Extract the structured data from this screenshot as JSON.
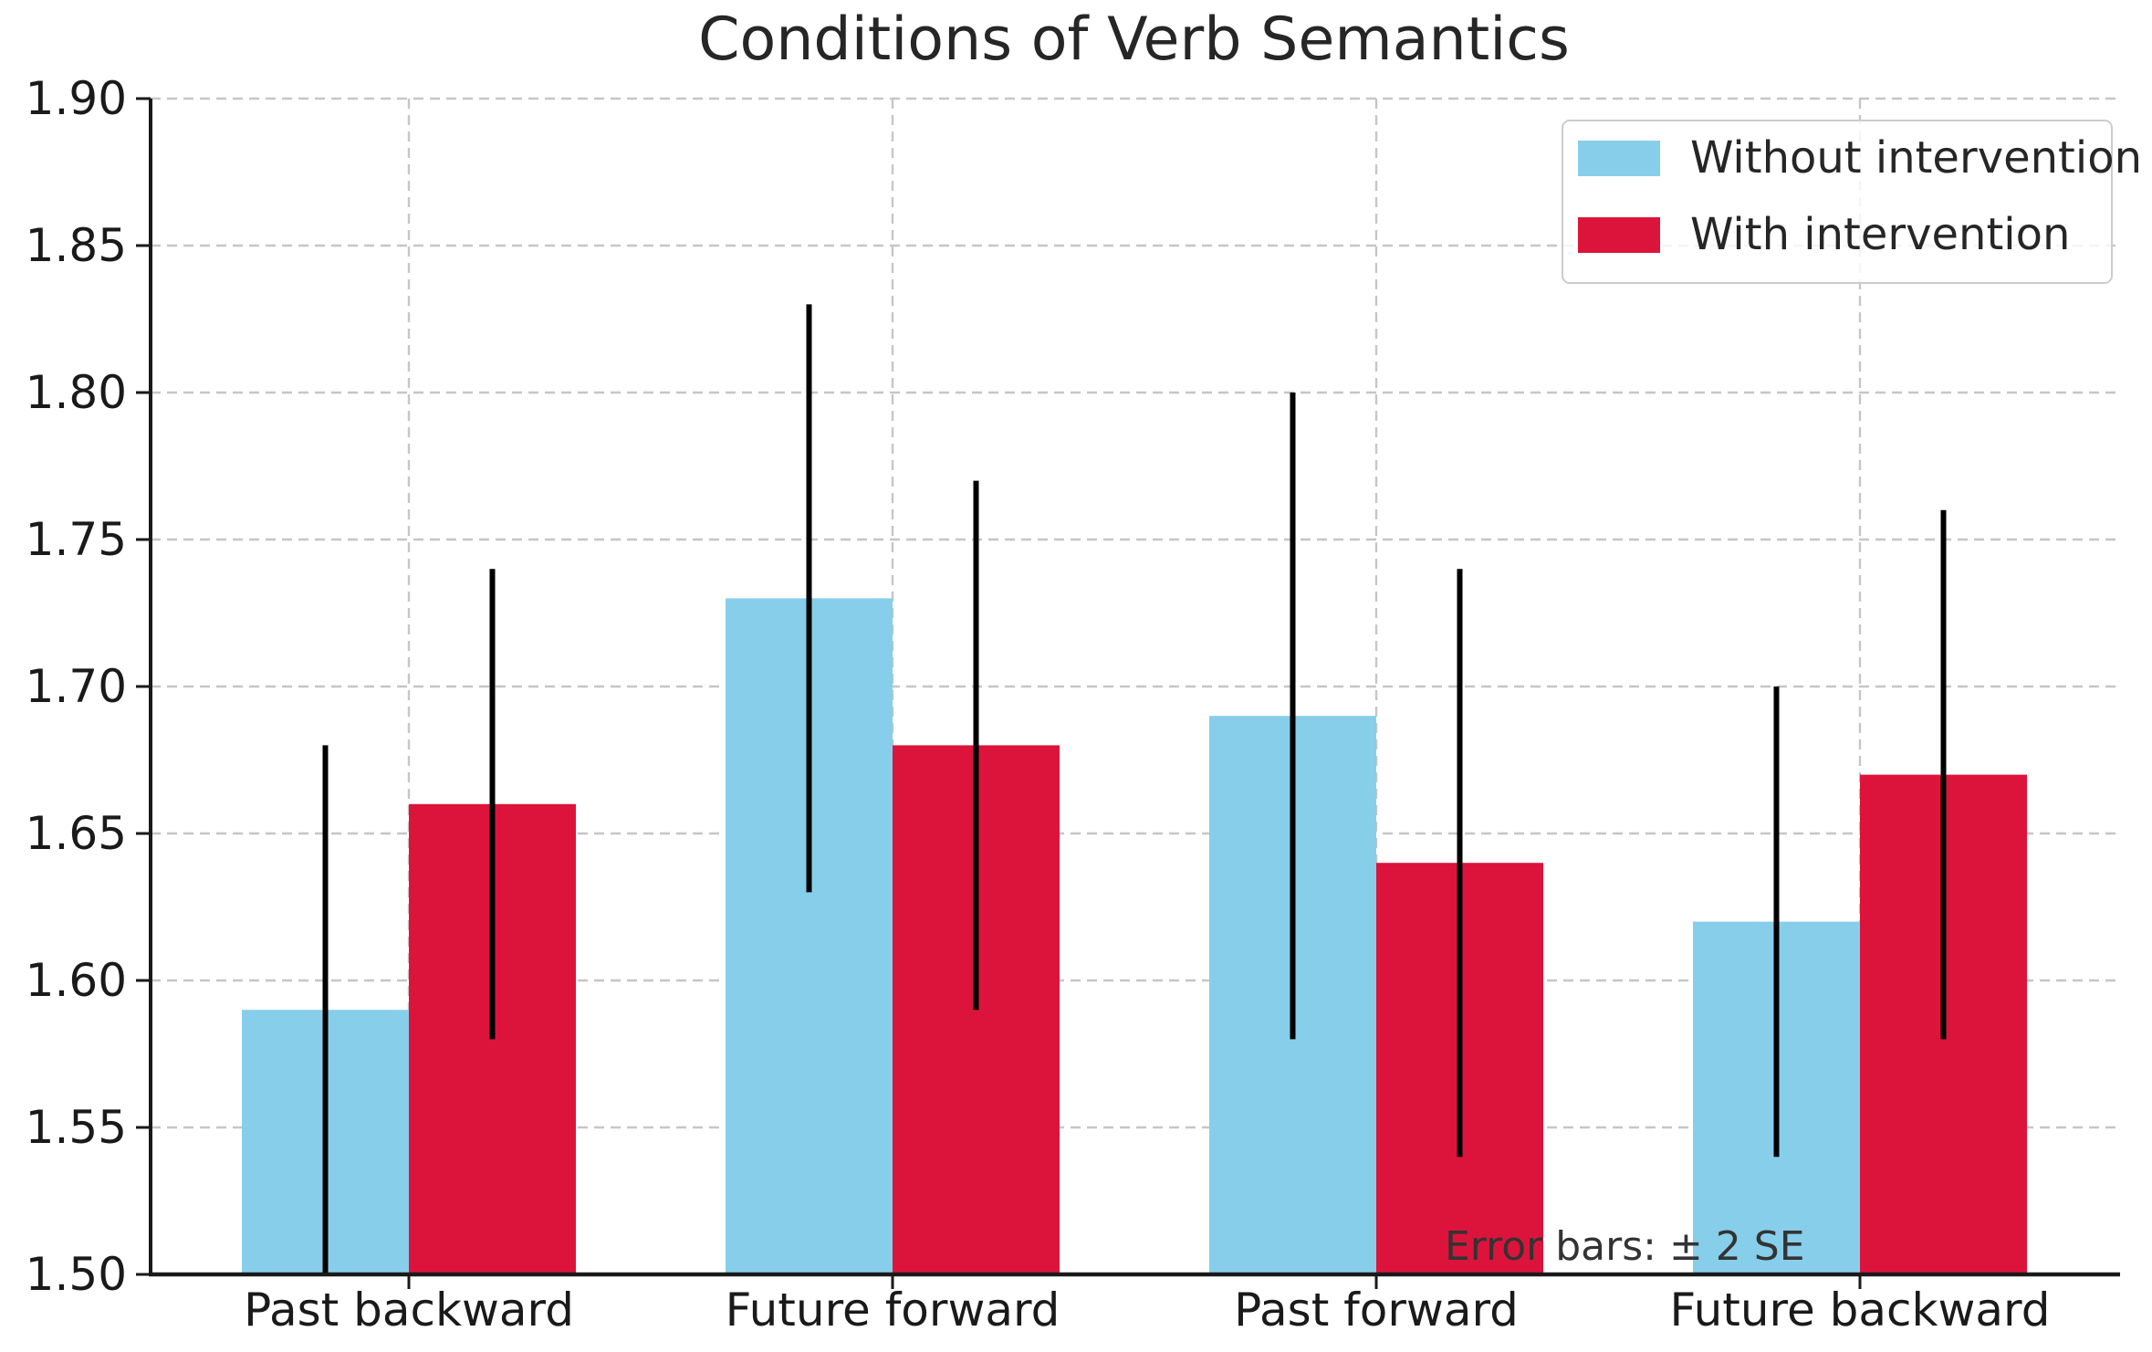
{
  "chart_data": {
    "type": "bar",
    "title": "Conditions of Verb Semantics",
    "categories": [
      "Past backward",
      "Future forward",
      "Past forward",
      "Future backward"
    ],
    "series": [
      {
        "name": "Without intervention",
        "color": "#87CEEB",
        "values": [
          1.59,
          1.73,
          1.69,
          1.62
        ],
        "error_2se": [
          0.09,
          0.1,
          0.11,
          0.08
        ]
      },
      {
        "name": "With intervention",
        "color": "#DC143C",
        "values": [
          1.66,
          1.68,
          1.64,
          1.67
        ],
        "error_2se": [
          0.08,
          0.09,
          0.1,
          0.09
        ]
      }
    ],
    "ylim": [
      1.5,
      1.9
    ],
    "yticks": [
      "1.50",
      "1.55",
      "1.60",
      "1.65",
      "1.70",
      "1.75",
      "1.80",
      "1.85",
      "1.90"
    ],
    "xlabel": "",
    "ylabel": "",
    "grid": {
      "horizontal": true,
      "vertical": true,
      "style": "dashed"
    },
    "legend_position": "upper right",
    "annotation": "Error bars: ± 2 SE",
    "error_bar_color": "#000000"
  }
}
